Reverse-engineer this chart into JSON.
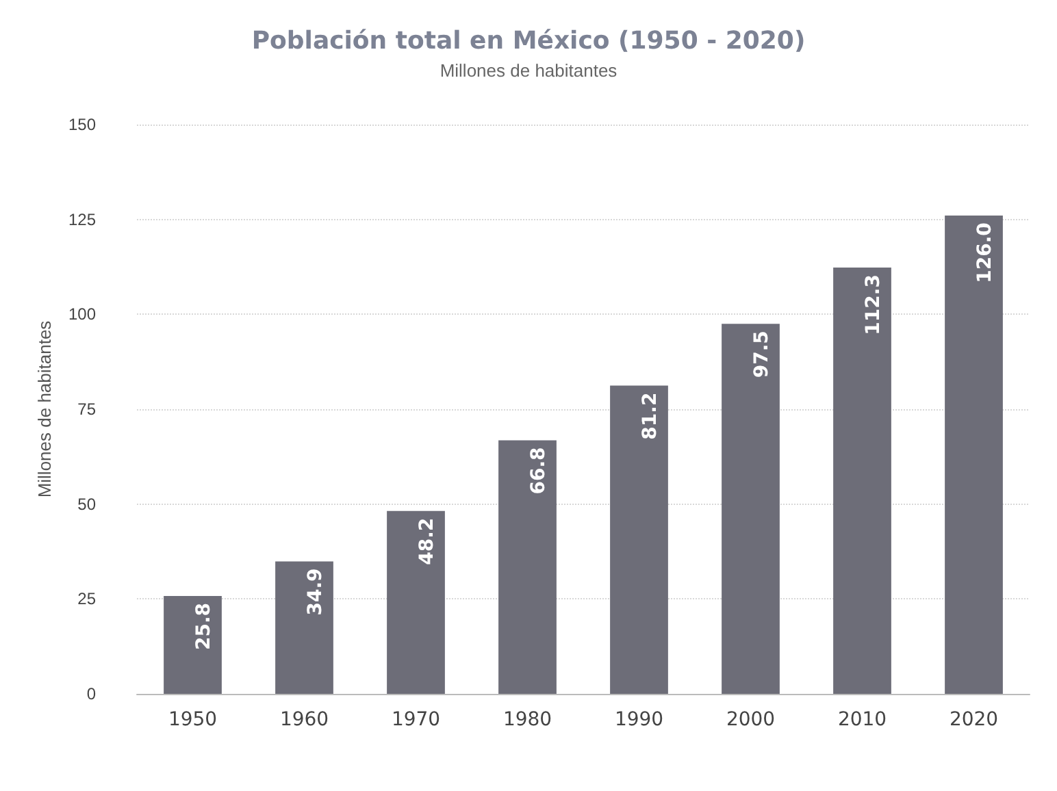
{
  "chart_data": {
    "type": "bar",
    "title": "Población total en México (1950 - 2020)",
    "subtitle": "Millones de habitantes",
    "ylabel": "Millones de habitantes",
    "categories": [
      "1950",
      "1960",
      "1970",
      "1980",
      "1990",
      "2000",
      "2010",
      "2020"
    ],
    "values": [
      25.8,
      34.9,
      48.2,
      66.8,
      81.2,
      97.5,
      112.3,
      126.0
    ],
    "value_labels": [
      "25.8",
      "34.9",
      "48.2",
      "66.8",
      "81.2",
      "97.5",
      "112.3",
      "126.0"
    ],
    "color": "#6d6d78",
    "ylim": [
      0,
      150
    ],
    "yticks": [
      0,
      25,
      50,
      75,
      100,
      125,
      150
    ],
    "grid": "y"
  }
}
